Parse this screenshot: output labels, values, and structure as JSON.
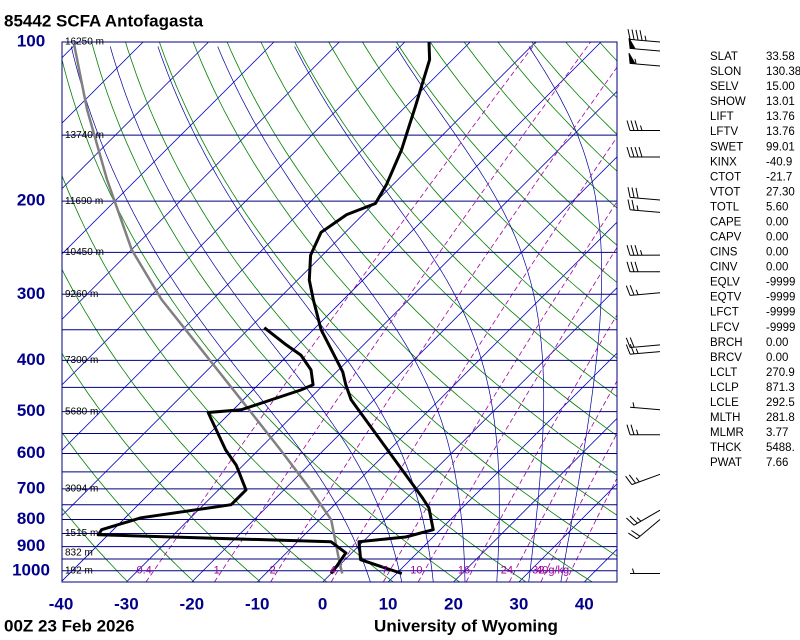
{
  "chart_data": {
    "type": "skewt",
    "title": "85442 SCFA Antofagasta",
    "footer_left": "00Z 23 Feb 2026",
    "footer_right": "University of Wyoming",
    "ylim": [
      1050,
      100
    ],
    "log_y": true,
    "yticks": [
      100,
      200,
      300,
      400,
      500,
      600,
      700,
      800,
      900,
      1000
    ],
    "xlim": [
      -40,
      45
    ],
    "xticks": [
      -40,
      -30,
      -20,
      -10,
      0,
      10,
      20,
      30,
      40
    ],
    "isobars": [
      100,
      150,
      200,
      250,
      300,
      350,
      400,
      450,
      500,
      550,
      600,
      650,
      700,
      750,
      800,
      850,
      900,
      950,
      1000
    ],
    "isotherms": [
      -120,
      -110,
      -100,
      -90,
      -80,
      -70,
      -60,
      -50,
      -40,
      -30,
      -20,
      -10,
      0,
      10,
      20,
      30,
      40
    ],
    "dry_adiabats": [
      230,
      240,
      250,
      260,
      270,
      280,
      290,
      300,
      310,
      320,
      330,
      340,
      350,
      360,
      370,
      380,
      390,
      400,
      410,
      420,
      430,
      440,
      450,
      460,
      470
    ],
    "moist_adiabats": [
      5,
      10,
      15,
      20,
      25,
      30,
      35
    ],
    "mixing_ratios": [
      0.4,
      1,
      2,
      4,
      7,
      10,
      16,
      24,
      32,
      {
        "value": 40,
        "label": "40g/kg"
      }
    ],
    "height_labels": [
      {
        "pressure": 100,
        "label": "16250 m"
      },
      {
        "pressure": 150,
        "label": "13740 m"
      },
      {
        "pressure": 200,
        "label": "11690 m"
      },
      {
        "pressure": 250,
        "label": "10450 m"
      },
      {
        "pressure": 300,
        "label": "9260 m"
      },
      {
        "pressure": 400,
        "label": "7300 m"
      },
      {
        "pressure": 500,
        "label": "5680 m"
      },
      {
        "pressure": 700,
        "label": "3094 m"
      },
      {
        "pressure": 850,
        "label": "1515 m"
      },
      {
        "pressure": 925,
        "label": "832 m"
      },
      {
        "pressure": 1000,
        "label": "192 m"
      }
    ],
    "colors": {
      "isobar": "#000080",
      "isotherm": "#0000c0",
      "dry_adiabat": "#008000",
      "moist_adiabat": "#0000a0",
      "mixing_ratio": "#a000a0",
      "axis_label": "#00008b"
    },
    "temperature": {
      "color": "#000000",
      "pressure": [
        1012,
        953,
        881,
        863,
        836,
        760,
        728,
        475,
        445,
        421,
        350,
        307,
        282,
        253,
        229,
        212,
        202,
        186,
        160,
        132,
        108,
        100
      ],
      "values": [
        10.8,
        2.4,
        -0.6,
        5.8,
        8.9,
        4.9,
        2.4,
        -23.5,
        -26.6,
        -29.0,
        -38.8,
        -44.6,
        -48.2,
        -51.8,
        -53.7,
        -52.5,
        -49.8,
        -51.0,
        -54.0,
        -58.6,
        -63.5,
        -66.3
      ]
    },
    "dewpoint": {
      "color": "#000000",
      "pressure": [
        1012,
        987,
        925,
        881,
        855,
        836,
        794,
        750,
        703,
        631,
        591,
        518,
        502,
        496,
        455,
        445,
        417,
        391,
        374,
        347
      ],
      "values": [
        0.0,
        -0.2,
        -0.9,
        -4.9,
        -41.5,
        -41.8,
        -37.6,
        -25.8,
        -25.8,
        -31.1,
        -35.0,
        -41.8,
        -43.4,
        -38.8,
        -32.7,
        -31.6,
        -34.2,
        -38.0,
        -41.8,
        -47.8
      ]
    },
    "parcel": {
      "color": "#808080",
      "pressure": [
        1012,
        953,
        801,
        703,
        591,
        475,
        382,
        307,
        247,
        182,
        134,
        101
      ],
      "values": [
        1.7,
        -0.9,
        -8.2,
        -15.9,
        -26.6,
        -40.3,
        -54.0,
        -67.8,
        -80.0,
        -94.5,
        -108.3,
        -120.2
      ]
    },
    "winds": {
      "pressure": [
        100,
        104,
        111,
        147,
        165,
        199,
        210,
        253,
        272,
        298,
        374,
        385,
        496,
        553,
        657,
        768,
        800,
        1012
      ],
      "direction": [
        275,
        275,
        275,
        270,
        270,
        275,
        275,
        270,
        270,
        265,
        265,
        265,
        275,
        270,
        250,
        240,
        230,
        270
      ],
      "speed": [
        45,
        50,
        55,
        35,
        40,
        30,
        25,
        35,
        30,
        25,
        20,
        25,
        5,
        25,
        25,
        25,
        20,
        5
      ]
    }
  },
  "indices": [
    {
      "name": "SLAT",
      "value": "33.58"
    },
    {
      "name": "SLON",
      "value": "130.38"
    },
    {
      "name": "SELV",
      "value": "15.00"
    },
    {
      "name": "SHOW",
      "value": "13.01"
    },
    {
      "name": "LIFT",
      "value": "13.76"
    },
    {
      "name": "LFTV",
      "value": "13.76"
    },
    {
      "name": "SWET",
      "value": "99.01"
    },
    {
      "name": "KINX",
      "value": "-40.9"
    },
    {
      "name": "CTOT",
      "value": "-21.7"
    },
    {
      "name": "VTOT",
      "value": "27.30"
    },
    {
      "name": "TOTL",
      "value": "5.60"
    },
    {
      "name": "CAPE",
      "value": "0.00"
    },
    {
      "name": "CAPV",
      "value": "0.00"
    },
    {
      "name": "CINS",
      "value": "0.00"
    },
    {
      "name": "CINV",
      "value": "0.00"
    },
    {
      "name": "EQLV",
      "value": "-9999"
    },
    {
      "name": "EQTV",
      "value": "-9999"
    },
    {
      "name": "LFCT",
      "value": "-9999"
    },
    {
      "name": "LFCV",
      "value": "-9999"
    },
    {
      "name": "BRCH",
      "value": "0.00"
    },
    {
      "name": "BRCV",
      "value": "0.00"
    },
    {
      "name": "LCLT",
      "value": "270.9"
    },
    {
      "name": "LCLP",
      "value": "871.3"
    },
    {
      "name": "LCLE",
      "value": "292.5"
    },
    {
      "name": "MLTH",
      "value": "281.8"
    },
    {
      "name": "MLMR",
      "value": "3.77"
    },
    {
      "name": "THCK",
      "value": "5488."
    },
    {
      "name": "PWAT",
      "value": "7.66"
    }
  ]
}
